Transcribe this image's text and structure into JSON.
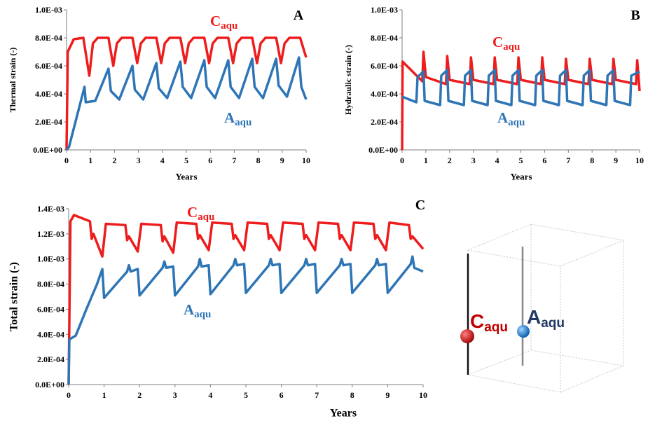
{
  "chart_data": [
    {
      "type": "line",
      "panel_label": "A",
      "ylabel": "Thermal strain (-)",
      "xlabel": "Years",
      "xlim": [
        0,
        10
      ],
      "xticks": [
        0,
        1,
        2,
        3,
        4,
        5,
        6,
        7,
        8,
        9,
        10
      ],
      "ylim": [
        0,
        0.001
      ],
      "yticks": [
        {
          "value": 0,
          "label": "0.0E+00"
        },
        {
          "value": 0.0002,
          "label": "2.0E-04"
        },
        {
          "value": 0.0004,
          "label": "4.0E-04"
        },
        {
          "value": 0.0006,
          "label": "6.0E-04"
        },
        {
          "value": 0.0008,
          "label": "8.0E-04"
        },
        {
          "value": 0.001,
          "label": "1.0E-03"
        }
      ],
      "series": [
        {
          "name": "C",
          "name_sub": "aqu",
          "color": "#ee1c1c",
          "x": [
            0,
            0.05,
            0.3,
            0.7,
            0.95,
            1.1,
            1.3,
            1.75,
            1.95,
            2.1,
            2.3,
            2.75,
            2.95,
            3.1,
            3.3,
            3.75,
            3.95,
            4.1,
            4.3,
            4.75,
            4.95,
            5.1,
            5.3,
            5.75,
            5.95,
            6.1,
            6.3,
            6.75,
            6.95,
            7.1,
            7.3,
            7.75,
            7.95,
            8.1,
            8.3,
            8.75,
            8.95,
            9.1,
            9.3,
            9.75,
            10
          ],
          "values": [
            0,
            0.0007,
            0.00079,
            0.0008,
            0.00053,
            0.00076,
            0.0008,
            0.0008,
            0.0006,
            0.00076,
            0.0008,
            0.0008,
            0.00062,
            0.00076,
            0.0008,
            0.0008,
            0.00062,
            0.00076,
            0.0008,
            0.0008,
            0.00062,
            0.00076,
            0.0008,
            0.0008,
            0.00062,
            0.00076,
            0.0008,
            0.0008,
            0.00062,
            0.00076,
            0.0008,
            0.0008,
            0.00062,
            0.00076,
            0.0008,
            0.0008,
            0.00062,
            0.00076,
            0.0008,
            0.0008,
            0.00066
          ]
        },
        {
          "name": "A",
          "name_sub": "aqu",
          "color": "#2e75b6",
          "x": [
            0,
            0.1,
            0.75,
            0.8,
            1.2,
            1.75,
            1.85,
            2.2,
            2.75,
            2.85,
            3.2,
            3.75,
            3.85,
            4.2,
            4.75,
            4.85,
            5.2,
            5.75,
            5.85,
            6.2,
            6.75,
            6.85,
            7.2,
            7.75,
            7.85,
            8.2,
            8.75,
            8.85,
            9.2,
            9.7,
            9.8,
            10
          ],
          "values": [
            0,
            2e-05,
            0.00045,
            0.00034,
            0.00035,
            0.00058,
            0.00042,
            0.00036,
            0.0006,
            0.00043,
            0.00036,
            0.00062,
            0.00044,
            0.00037,
            0.00063,
            0.00045,
            0.00037,
            0.00064,
            0.00045,
            0.00037,
            0.00064,
            0.00045,
            0.00037,
            0.00065,
            0.00045,
            0.00037,
            0.00065,
            0.00046,
            0.00038,
            0.00066,
            0.00045,
            0.00036
          ]
        }
      ]
    },
    {
      "type": "line",
      "panel_label": "B",
      "ylabel": "Hydraulic strain (-)",
      "xlabel": "Years",
      "xlim": [
        0,
        10
      ],
      "xticks": [
        0,
        1,
        2,
        3,
        4,
        5,
        6,
        7,
        8,
        9,
        10
      ],
      "ylim": [
        0,
        0.001
      ],
      "yticks": [
        {
          "value": 0,
          "label": "0.0E+00"
        },
        {
          "value": 0.0002,
          "label": "2.0E-04"
        },
        {
          "value": 0.0004,
          "label": "4.0E-04"
        },
        {
          "value": 0.0006,
          "label": "6.0E-04"
        },
        {
          "value": 0.0008,
          "label": "8.0E-04"
        },
        {
          "value": 0.001,
          "label": "1.0E-03"
        }
      ],
      "series": [
        {
          "name": "C",
          "name_sub": "aqu",
          "color": "#ee1c1c",
          "x": [
            0,
            0.02,
            0.85,
            0.9,
            1.0,
            1.85,
            1.9,
            2.0,
            2.85,
            2.9,
            3.0,
            3.85,
            3.9,
            4.0,
            4.85,
            4.9,
            5.0,
            5.85,
            5.9,
            6.0,
            6.85,
            6.9,
            7.0,
            7.85,
            7.9,
            8.0,
            8.85,
            8.9,
            9.0,
            9.85,
            9.9,
            10
          ],
          "values": [
            0,
            0.00063,
            0.00049,
            0.0007,
            0.00052,
            0.00047,
            0.00067,
            0.0005,
            0.00047,
            0.00066,
            0.0005,
            0.00047,
            0.00066,
            0.0005,
            0.00047,
            0.00066,
            0.0005,
            0.00047,
            0.00066,
            0.0005,
            0.00047,
            0.00065,
            0.0005,
            0.00047,
            0.00065,
            0.0005,
            0.00047,
            0.00065,
            0.0005,
            0.00047,
            0.00064,
            0.00042
          ]
        },
        {
          "name": "A",
          "name_sub": "aqu",
          "color": "#2e75b6",
          "x": [
            0,
            0.6,
            0.65,
            0.9,
            0.95,
            1.6,
            1.65,
            1.9,
            1.95,
            2.6,
            2.65,
            2.9,
            2.95,
            3.6,
            3.65,
            3.9,
            3.95,
            4.6,
            4.65,
            4.9,
            4.95,
            5.6,
            5.65,
            5.9,
            5.95,
            6.6,
            6.65,
            6.9,
            6.95,
            7.6,
            7.65,
            7.9,
            7.95,
            8.6,
            8.65,
            8.9,
            8.95,
            9.6,
            9.65,
            10
          ],
          "values": [
            0.00038,
            0.00034,
            0.00052,
            0.00056,
            0.00035,
            0.00032,
            0.00053,
            0.00057,
            0.00035,
            0.00032,
            0.00053,
            0.00057,
            0.00035,
            0.00032,
            0.00053,
            0.00057,
            0.00035,
            0.00032,
            0.00053,
            0.00057,
            0.00035,
            0.00032,
            0.00053,
            0.00057,
            0.00035,
            0.00032,
            0.00053,
            0.00057,
            0.00035,
            0.00032,
            0.00053,
            0.00057,
            0.00035,
            0.00032,
            0.00053,
            0.00057,
            0.00035,
            0.00032,
            0.00053,
            0.00056
          ]
        }
      ]
    },
    {
      "type": "line",
      "panel_label": "C",
      "ylabel": "Total strain (-)",
      "xlabel": "Years",
      "xlim": [
        0,
        10
      ],
      "xticks": [
        0,
        1,
        2,
        3,
        4,
        5,
        6,
        7,
        8,
        9,
        10
      ],
      "ylim": [
        0,
        0.0014
      ],
      "yticks": [
        {
          "value": 0,
          "label": "0.0E+00"
        },
        {
          "value": 0.0002,
          "label": "2.0E-04"
        },
        {
          "value": 0.0004,
          "label": "4.0E-04"
        },
        {
          "value": 0.0006,
          "label": "6.0E-04"
        },
        {
          "value": 0.0008,
          "label": "8.0E-04"
        },
        {
          "value": 0.001,
          "label": "1.0E-03"
        },
        {
          "value": 0.0012,
          "label": "1.2E-03"
        },
        {
          "value": 0.0014,
          "label": "1.4E-03"
        }
      ],
      "series": [
        {
          "name": "C",
          "name_sub": "aqu",
          "color": "#ee1c1c",
          "x": [
            0,
            0.05,
            0.15,
            0.6,
            0.65,
            0.7,
            0.95,
            1.05,
            1.6,
            1.65,
            1.7,
            1.95,
            2.05,
            2.6,
            2.65,
            2.7,
            2.95,
            3.05,
            3.6,
            3.65,
            3.7,
            3.95,
            4.05,
            4.6,
            4.65,
            4.7,
            4.95,
            5.05,
            5.6,
            5.65,
            5.7,
            5.95,
            6.05,
            6.6,
            6.65,
            6.7,
            6.95,
            7.05,
            7.6,
            7.65,
            7.7,
            7.95,
            8.05,
            8.6,
            8.65,
            8.7,
            8.95,
            9.05,
            9.6,
            9.65,
            9.7,
            10
          ],
          "values": [
            0,
            0.0013,
            0.00135,
            0.0013,
            0.00116,
            0.0012,
            0.00102,
            0.00128,
            0.00127,
            0.00115,
            0.00118,
            0.00106,
            0.00128,
            0.00127,
            0.00114,
            0.00118,
            0.00105,
            0.00129,
            0.00128,
            0.00116,
            0.00119,
            0.00107,
            0.00129,
            0.00128,
            0.00116,
            0.00119,
            0.00107,
            0.00129,
            0.00128,
            0.00116,
            0.00119,
            0.00107,
            0.00129,
            0.00128,
            0.00116,
            0.00119,
            0.00107,
            0.00129,
            0.00128,
            0.00116,
            0.00119,
            0.00107,
            0.00129,
            0.00128,
            0.00116,
            0.00119,
            0.00107,
            0.00129,
            0.00127,
            0.00116,
            0.00118,
            0.00108
          ]
        },
        {
          "name": "A",
          "name_sub": "aqu",
          "color": "#2e75b6",
          "x": [
            0,
            0.02,
            0.2,
            0.5,
            0.8,
            0.95,
            1.0,
            1.65,
            1.7,
            1.75,
            1.95,
            2.0,
            2.65,
            2.7,
            2.75,
            2.95,
            3.0,
            3.65,
            3.7,
            3.75,
            3.95,
            4.0,
            4.65,
            4.7,
            4.75,
            4.95,
            5.0,
            5.65,
            5.7,
            5.75,
            5.95,
            6.0,
            6.65,
            6.7,
            6.75,
            6.95,
            7.0,
            7.65,
            7.7,
            7.75,
            7.95,
            8.0,
            8.65,
            8.7,
            8.75,
            8.95,
            9.0,
            9.65,
            9.7,
            9.75,
            10
          ],
          "values": [
            0,
            0.00036,
            0.00039,
            0.0006,
            0.0008,
            0.00092,
            0.00069,
            0.0009,
            0.00095,
            0.0009,
            0.00092,
            0.00071,
            0.00093,
            0.00098,
            0.00093,
            0.00094,
            0.00071,
            0.00094,
            0.001,
            0.00094,
            0.00095,
            0.00072,
            0.00095,
            0.001,
            0.00095,
            0.00096,
            0.00073,
            0.00095,
            0.001,
            0.00095,
            0.00096,
            0.00073,
            0.00095,
            0.001,
            0.00095,
            0.00096,
            0.00073,
            0.00095,
            0.001,
            0.00095,
            0.00096,
            0.00073,
            0.00095,
            0.001,
            0.00095,
            0.00096,
            0.00073,
            0.00096,
            0.00102,
            0.00093,
            0.0009
          ]
        }
      ]
    }
  ],
  "diagram": {
    "labels": [
      {
        "text": "C",
        "sub": "aqu"
      },
      {
        "text": "A",
        "sub": "aqu"
      }
    ]
  }
}
